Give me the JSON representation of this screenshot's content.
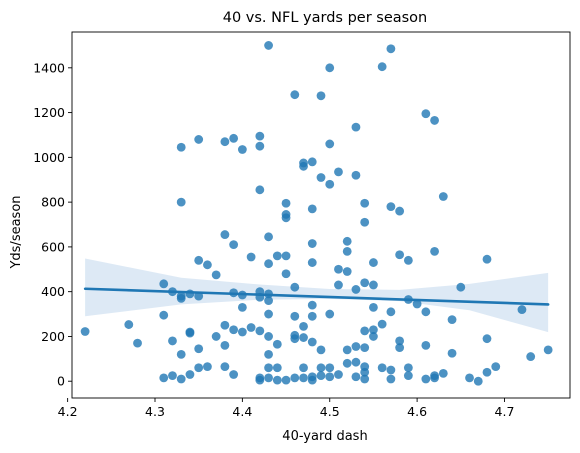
{
  "chart_data": {
    "type": "scatter",
    "title": "40 vs. NFL yards per season",
    "xlabel": "40-yard dash",
    "ylabel": "Yds/season",
    "xlim": [
      4.205,
      4.775
    ],
    "ylim": [
      -75,
      1560
    ],
    "xticks": [
      "4.2",
      "4.3",
      "4.4",
      "4.5",
      "4.6",
      "4.7"
    ],
    "yticks": [
      "0",
      "200",
      "400",
      "600",
      "800",
      "1000",
      "1200",
      "1400"
    ],
    "grid": false,
    "legend": "none",
    "colors": {
      "points": "#1f77b4",
      "line": "#1f77b4",
      "band": "#c6dbef"
    },
    "regression": {
      "x": [
        4.22,
        4.75
      ],
      "y": [
        413,
        343
      ]
    },
    "confidence_band": {
      "x": [
        4.22,
        4.33,
        4.42,
        4.5,
        4.58,
        4.66,
        4.75
      ],
      "upper": [
        548,
        462,
        432,
        412,
        408,
        435,
        484
      ],
      "lower": [
        290,
        343,
        364,
        368,
        358,
        317,
        219
      ]
    },
    "points": [
      [
        4.22,
        222
      ],
      [
        4.27,
        253
      ],
      [
        4.28,
        170
      ],
      [
        4.31,
        435
      ],
      [
        4.31,
        295
      ],
      [
        4.31,
        15
      ],
      [
        4.32,
        400
      ],
      [
        4.32,
        180
      ],
      [
        4.32,
        25
      ],
      [
        4.33,
        1045
      ],
      [
        4.33,
        800
      ],
      [
        4.33,
        380
      ],
      [
        4.33,
        370
      ],
      [
        4.33,
        120
      ],
      [
        4.33,
        10
      ],
      [
        4.34,
        390
      ],
      [
        4.34,
        220
      ],
      [
        4.34,
        215
      ],
      [
        4.34,
        30
      ],
      [
        4.35,
        1080
      ],
      [
        4.35,
        540
      ],
      [
        4.35,
        380
      ],
      [
        4.35,
        145
      ],
      [
        4.35,
        60
      ],
      [
        4.36,
        520
      ],
      [
        4.36,
        65
      ],
      [
        4.37,
        475
      ],
      [
        4.37,
        200
      ],
      [
        4.38,
        1070
      ],
      [
        4.38,
        655
      ],
      [
        4.38,
        250
      ],
      [
        4.38,
        160
      ],
      [
        4.38,
        65
      ],
      [
        4.39,
        1085
      ],
      [
        4.39,
        610
      ],
      [
        4.39,
        395
      ],
      [
        4.39,
        230
      ],
      [
        4.39,
        30
      ],
      [
        4.4,
        1035
      ],
      [
        4.4,
        385
      ],
      [
        4.4,
        330
      ],
      [
        4.4,
        220
      ],
      [
        4.41,
        555
      ],
      [
        4.41,
        240
      ],
      [
        4.42,
        1095
      ],
      [
        4.42,
        1050
      ],
      [
        4.42,
        855
      ],
      [
        4.42,
        400
      ],
      [
        4.42,
        375
      ],
      [
        4.42,
        225
      ],
      [
        4.42,
        15
      ],
      [
        4.42,
        5
      ],
      [
        4.43,
        1500
      ],
      [
        4.43,
        645
      ],
      [
        4.43,
        525
      ],
      [
        4.43,
        390
      ],
      [
        4.43,
        360
      ],
      [
        4.43,
        300
      ],
      [
        4.43,
        200
      ],
      [
        4.43,
        120
      ],
      [
        4.43,
        60
      ],
      [
        4.43,
        15
      ],
      [
        4.44,
        560
      ],
      [
        4.44,
        165
      ],
      [
        4.44,
        60
      ],
      [
        4.44,
        5
      ],
      [
        4.45,
        795
      ],
      [
        4.45,
        745
      ],
      [
        4.45,
        730
      ],
      [
        4.45,
        560
      ],
      [
        4.45,
        480
      ],
      [
        4.45,
        5
      ],
      [
        4.46,
        1280
      ],
      [
        4.46,
        420
      ],
      [
        4.46,
        290
      ],
      [
        4.46,
        205
      ],
      [
        4.46,
        190
      ],
      [
        4.46,
        15
      ],
      [
        4.47,
        975
      ],
      [
        4.47,
        960
      ],
      [
        4.47,
        245
      ],
      [
        4.47,
        195
      ],
      [
        4.47,
        60
      ],
      [
        4.47,
        15
      ],
      [
        4.48,
        980
      ],
      [
        4.48,
        770
      ],
      [
        4.48,
        615
      ],
      [
        4.48,
        530
      ],
      [
        4.48,
        340
      ],
      [
        4.48,
        290
      ],
      [
        4.48,
        175
      ],
      [
        4.48,
        20
      ],
      [
        4.48,
        5
      ],
      [
        4.49,
        1275
      ],
      [
        4.49,
        910
      ],
      [
        4.49,
        140
      ],
      [
        4.49,
        60
      ],
      [
        4.49,
        25
      ],
      [
        4.5,
        1400
      ],
      [
        4.5,
        1060
      ],
      [
        4.5,
        880
      ],
      [
        4.5,
        300
      ],
      [
        4.5,
        60
      ],
      [
        4.5,
        20
      ],
      [
        4.51,
        935
      ],
      [
        4.51,
        500
      ],
      [
        4.51,
        430
      ],
      [
        4.51,
        30
      ],
      [
        4.52,
        625
      ],
      [
        4.52,
        580
      ],
      [
        4.52,
        490
      ],
      [
        4.52,
        140
      ],
      [
        4.52,
        80
      ],
      [
        4.53,
        1135
      ],
      [
        4.53,
        920
      ],
      [
        4.53,
        410
      ],
      [
        4.53,
        155
      ],
      [
        4.53,
        85
      ],
      [
        4.53,
        20
      ],
      [
        4.54,
        795
      ],
      [
        4.54,
        710
      ],
      [
        4.54,
        440
      ],
      [
        4.54,
        225
      ],
      [
        4.54,
        150
      ],
      [
        4.54,
        65
      ],
      [
        4.54,
        40
      ],
      [
        4.54,
        10
      ],
      [
        4.55,
        530
      ],
      [
        4.55,
        430
      ],
      [
        4.55,
        330
      ],
      [
        4.55,
        230
      ],
      [
        4.55,
        200
      ],
      [
        4.56,
        1405
      ],
      [
        4.56,
        255
      ],
      [
        4.56,
        60
      ],
      [
        4.57,
        1485
      ],
      [
        4.57,
        780
      ],
      [
        4.57,
        310
      ],
      [
        4.57,
        50
      ],
      [
        4.57,
        10
      ],
      [
        4.58,
        760
      ],
      [
        4.58,
        565
      ],
      [
        4.58,
        180
      ],
      [
        4.58,
        150
      ],
      [
        4.59,
        540
      ],
      [
        4.59,
        365
      ],
      [
        4.59,
        60
      ],
      [
        4.59,
        25
      ],
      [
        4.6,
        345
      ],
      [
        4.61,
        1195
      ],
      [
        4.61,
        310
      ],
      [
        4.61,
        160
      ],
      [
        4.61,
        10
      ],
      [
        4.62,
        1165
      ],
      [
        4.62,
        580
      ],
      [
        4.62,
        25
      ],
      [
        4.62,
        15
      ],
      [
        4.63,
        825
      ],
      [
        4.63,
        35
      ],
      [
        4.64,
        275
      ],
      [
        4.64,
        125
      ],
      [
        4.65,
        420
      ],
      [
        4.66,
        15
      ],
      [
        4.67,
        0
      ],
      [
        4.68,
        545
      ],
      [
        4.68,
        190
      ],
      [
        4.68,
        40
      ],
      [
        4.69,
        65
      ],
      [
        4.72,
        320
      ],
      [
        4.73,
        110
      ],
      [
        4.75,
        140
      ]
    ]
  }
}
